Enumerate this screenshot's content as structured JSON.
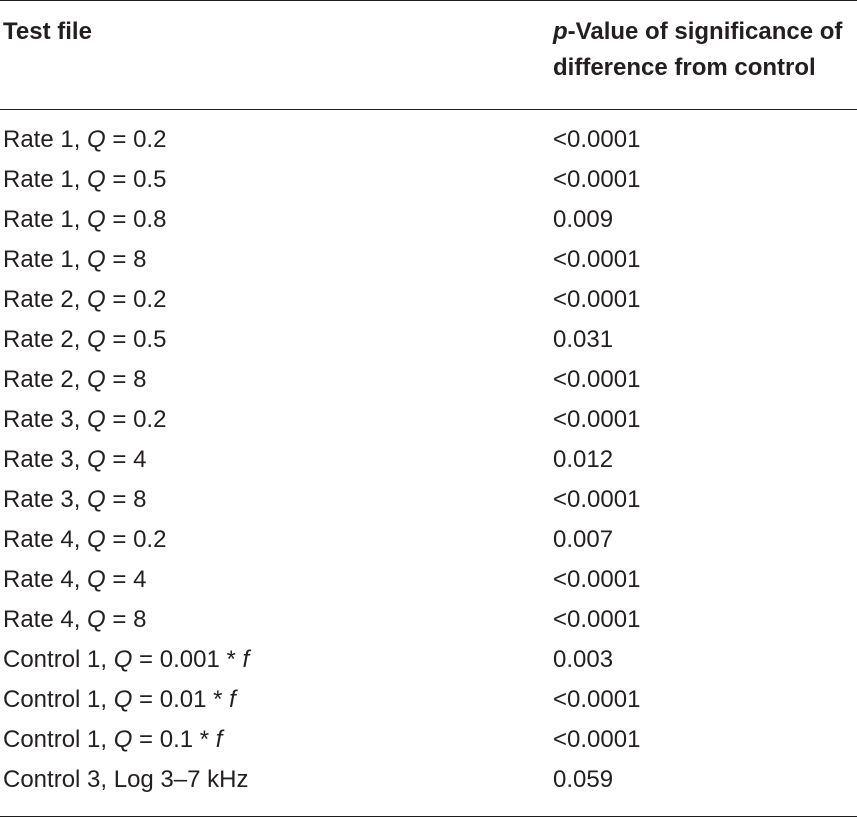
{
  "table": {
    "headers": {
      "test_file": "Test file",
      "p_value_var": "p",
      "p_value_line1_rest": "-Value of significance of",
      "p_value_line2": "difference from control"
    },
    "rows": [
      {
        "prefix": "Rate 1, ",
        "var": "Q",
        "eq": " = 0.2",
        "suffix": "",
        "p": "<0.0001"
      },
      {
        "prefix": "Rate 1, ",
        "var": "Q",
        "eq": " = 0.5",
        "suffix": "",
        "p": "<0.0001"
      },
      {
        "prefix": "Rate 1, ",
        "var": "Q",
        "eq": " = 0.8",
        "suffix": "",
        "p": "0.009"
      },
      {
        "prefix": "Rate 1, ",
        "var": "Q",
        "eq": " = 8",
        "suffix": "",
        "p": "<0.0001"
      },
      {
        "prefix": "Rate 2, ",
        "var": "Q",
        "eq": " = 0.2",
        "suffix": "",
        "p": "<0.0001"
      },
      {
        "prefix": "Rate 2, ",
        "var": "Q",
        "eq": " = 0.5",
        "suffix": "",
        "p": "0.031"
      },
      {
        "prefix": "Rate 2, ",
        "var": "Q",
        "eq": " = 8",
        "suffix": "",
        "p": "<0.0001"
      },
      {
        "prefix": "Rate 3, ",
        "var": "Q",
        "eq": " = 0.2",
        "suffix": "",
        "p": "<0.0001"
      },
      {
        "prefix": "Rate 3, ",
        "var": "Q",
        "eq": " = 4",
        "suffix": "",
        "p": "0.012"
      },
      {
        "prefix": "Rate 3, ",
        "var": "Q",
        "eq": " = 8",
        "suffix": "",
        "p": "<0.0001"
      },
      {
        "prefix": "Rate 4, ",
        "var": "Q",
        "eq": " = 0.2",
        "suffix": "",
        "p": "0.007"
      },
      {
        "prefix": "Rate 4, ",
        "var": "Q",
        "eq": " = 4",
        "suffix": "",
        "p": "<0.0001"
      },
      {
        "prefix": "Rate 4, ",
        "var": "Q",
        "eq": " = 8",
        "suffix": "",
        "p": "<0.0001"
      },
      {
        "prefix": "Control 1, ",
        "var": "Q",
        "eq": " = 0.001 * ",
        "suffix": "f",
        "p": "0.003"
      },
      {
        "prefix": "Control 1, ",
        "var": "Q",
        "eq": " = 0.01 * ",
        "suffix": "f",
        "p": "<0.0001"
      },
      {
        "prefix": "Control 1, ",
        "var": "Q",
        "eq": " = 0.1 * ",
        "suffix": "f",
        "p": "<0.0001"
      },
      {
        "prefix": "Control 3, Log 3–7 kHz",
        "var": "",
        "eq": "",
        "suffix": "",
        "p": "0.059"
      }
    ]
  }
}
